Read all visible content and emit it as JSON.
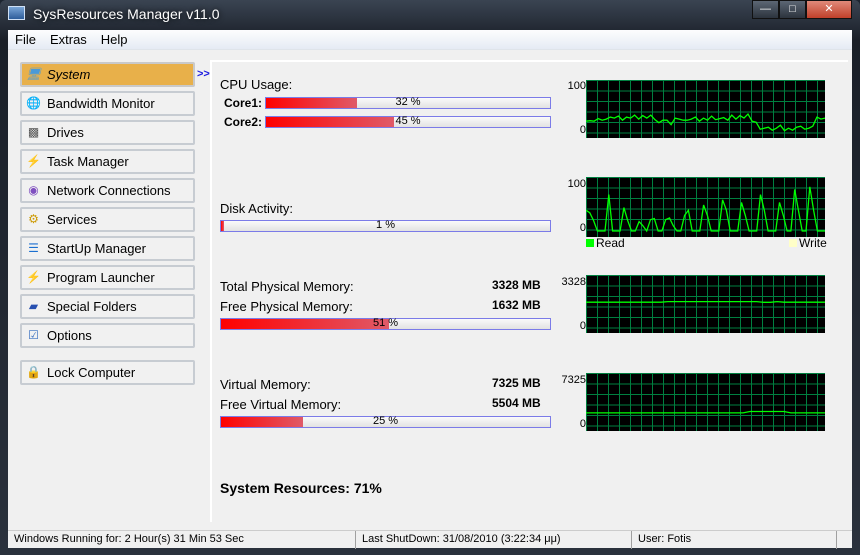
{
  "window": {
    "title": "SysResources Manager  v11.0",
    "minimize": "—",
    "maximize": "□",
    "close": "✕"
  },
  "menu": [
    "File",
    "Extras",
    "Help"
  ],
  "sidebar": {
    "items": [
      {
        "label": "System",
        "icon": "monitor-icon",
        "active": true
      },
      {
        "label": "Bandwidth Monitor",
        "icon": "network-globe-icon"
      },
      {
        "label": "Drives",
        "icon": "drive-icon"
      },
      {
        "label": "Task Manager",
        "icon": "task-icon"
      },
      {
        "label": "Network Connections",
        "icon": "connections-icon"
      },
      {
        "label": "Services",
        "icon": "services-icon"
      },
      {
        "label": "StartUp Manager",
        "icon": "startup-tree-icon"
      },
      {
        "label": "Program Launcher",
        "icon": "lightning-icon"
      },
      {
        "label": "Special Folders",
        "icon": "folder-icon"
      },
      {
        "label": "Options",
        "icon": "options-icon"
      }
    ],
    "lock": {
      "label": "Lock Computer",
      "icon": "lock-icon"
    },
    "expand": ">>"
  },
  "cpu": {
    "title": "CPU Usage:",
    "cores": [
      {
        "label": "Core1:",
        "percent": 32,
        "text": "32 %"
      },
      {
        "label": "Core2:",
        "percent": 45,
        "text": "45 %"
      }
    ],
    "graph": {
      "ymax": "100",
      "ymin": "0",
      "values": [
        22,
        23,
        22,
        27,
        24,
        26,
        30,
        28,
        32,
        24,
        30,
        28,
        34,
        26,
        33,
        28,
        34,
        25,
        19,
        24,
        24,
        15,
        28,
        26,
        24,
        24,
        26,
        30,
        22,
        28,
        24,
        32,
        25,
        27,
        29,
        24,
        34,
        26,
        33,
        28,
        36,
        22,
        20,
        6,
        8,
        10,
        4,
        8,
        14,
        3,
        8,
        4,
        10,
        12,
        6,
        8,
        12,
        30,
        26,
        28
      ]
    }
  },
  "disk": {
    "title": "Disk Activity:",
    "percent": 1,
    "text": "1 %",
    "graph": {
      "ymax": "100",
      "ymin": "0",
      "read_label": "Read",
      "write_label": "Write",
      "read_color": "#00ff00",
      "write_color": "#ffffc8",
      "values": [
        40,
        35,
        20,
        0,
        0,
        0,
        70,
        0,
        0,
        0,
        45,
        20,
        0,
        0,
        18,
        10,
        0,
        22,
        24,
        0,
        0,
        22,
        25,
        10,
        0,
        0,
        30,
        40,
        0,
        0,
        0,
        50,
        30,
        0,
        0,
        0,
        60,
        40,
        0,
        0,
        0,
        55,
        30,
        0,
        0,
        0,
        70,
        40,
        0,
        0,
        0,
        55,
        30,
        0,
        0,
        80,
        40,
        0,
        0,
        85,
        40,
        0,
        0,
        0
      ]
    }
  },
  "physical": {
    "total_label": "Total Physical Memory:",
    "total": "3328 MB",
    "free_label": "Free Physical Memory:",
    "free": "1632 MB",
    "percent": 51,
    "text": "51 %",
    "graph": {
      "ymax": "3328",
      "ymin": "0",
      "values": [
        1660,
        1660,
        1660,
        1660,
        1660,
        1660,
        1660,
        1660,
        1660,
        1660,
        1660,
        1660,
        1700,
        1700,
        1700,
        1700,
        1700,
        1700,
        1700,
        1700,
        1700,
        1700,
        1700,
        1700,
        1700,
        1700,
        1650,
        1650,
        1700,
        1660,
        1660,
        1660,
        1660,
        1660,
        1660,
        1660
      ]
    }
  },
  "virtual": {
    "total_label": "Virtual Memory:",
    "total": "7325 MB",
    "free_label": "Free Virtual Memory:",
    "free": "5504 MB",
    "percent": 25,
    "text": "25 %",
    "graph": {
      "ymax": "7325",
      "ymin": "0",
      "values": [
        1800,
        1800,
        1800,
        1800,
        1800,
        1800,
        1800,
        1800,
        1800,
        1800,
        1800,
        1800,
        1800,
        1800,
        1800,
        1800,
        1800,
        1800,
        1800,
        1800,
        1800,
        1800,
        1800,
        1800,
        2000,
        2000,
        2000,
        2000,
        2000,
        2000,
        1800,
        1800,
        1800,
        1800,
        1800,
        1800
      ]
    }
  },
  "summary": "System Resources: 71%",
  "status": {
    "uptime": "Windows Running for: 2 Hour(s) 31 Min 53 Sec",
    "shutdown": "Last ShutDown: 31/08/2010 (3:22:34 μμ)",
    "user": "User: Fotis"
  }
}
